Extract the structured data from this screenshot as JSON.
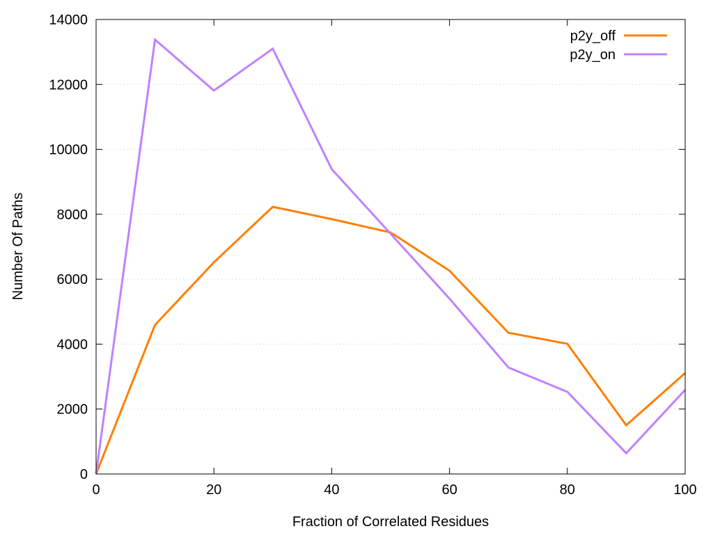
{
  "chart_data": {
    "type": "line",
    "title": "",
    "xlabel": "Fraction of Correlated Residues",
    "ylabel": "Number Of Paths",
    "xlim": [
      0,
      100
    ],
    "ylim": [
      0,
      14000
    ],
    "xticks": [
      0,
      20,
      40,
      60,
      80,
      100
    ],
    "yticks": [
      0,
      2000,
      4000,
      6000,
      8000,
      10000,
      12000,
      14000
    ],
    "grid": "horizontal dotted",
    "legend_position": "top-right",
    "x": [
      0,
      10,
      20,
      30,
      40,
      50,
      60,
      70,
      80,
      90,
      100
    ],
    "series": [
      {
        "name": "p2y_off",
        "color": "#ff7f00",
        "values": [
          0,
          4590,
          6520,
          8230,
          7850,
          7440,
          6260,
          4350,
          4010,
          1500,
          3110
        ]
      },
      {
        "name": "p2y_on",
        "color": "#c080ff",
        "values": [
          0,
          13380,
          11810,
          13100,
          9390,
          7400,
          5400,
          3280,
          2530,
          640,
          2590
        ]
      }
    ]
  }
}
